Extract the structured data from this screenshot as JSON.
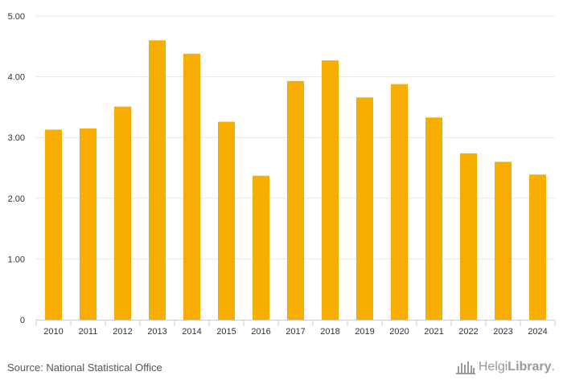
{
  "chart_data": {
    "type": "bar",
    "title": "",
    "xlabel": "",
    "ylabel": "",
    "categories": [
      "2010",
      "2011",
      "2012",
      "2013",
      "2014",
      "2015",
      "2016",
      "2017",
      "2018",
      "2019",
      "2020",
      "2021",
      "2022",
      "2023",
      "2024"
    ],
    "values": [
      3.13,
      3.15,
      3.51,
      4.6,
      4.38,
      3.26,
      2.37,
      3.93,
      4.27,
      3.66,
      3.88,
      3.33,
      2.74,
      2.6,
      2.39
    ],
    "ylim": [
      0,
      5
    ],
    "yticks": [
      0,
      1,
      2,
      3,
      4,
      5
    ],
    "ytick_labels": [
      "0",
      "1.00",
      "2.00",
      "3.00",
      "4.00",
      "5.00"
    ],
    "grid": true,
    "bar_color": "#F7AE00",
    "grid_color": "#E6E6E6",
    "axis_color": "#CCCCCC"
  },
  "footer": {
    "source": "Source: National Statistical Office",
    "brand_part1": "Helgi",
    "brand_part2": "Library",
    "brand_suffix": "."
  }
}
